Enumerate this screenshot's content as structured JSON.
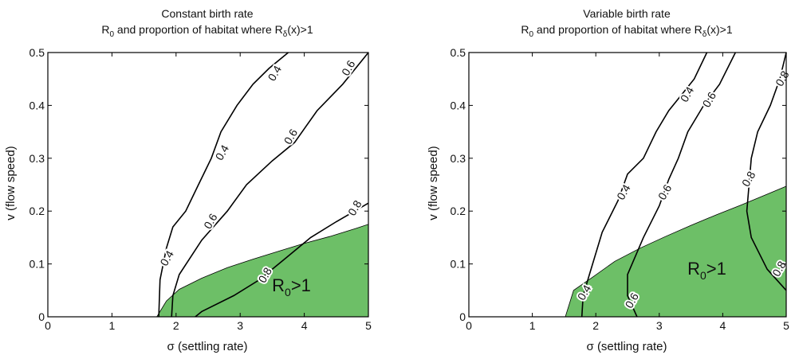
{
  "chart_data": [
    {
      "type": "contour",
      "title": "Constant birth rate",
      "subtitle_parts": {
        "pre": "R",
        "sub1": "0",
        "mid": " and proportion of habitat where R",
        "sub2": "δ",
        "post": "(x)>1"
      },
      "xlabel": "σ (settling rate)",
      "ylabel": "v (flow speed)",
      "xlim": [
        0,
        5
      ],
      "ylim": [
        0,
        0.5
      ],
      "xticks": [
        "0",
        "1",
        "2",
        "3",
        "4",
        "5"
      ],
      "yticks": [
        "0",
        "0.1",
        "0.2",
        "0.3",
        "0.4",
        "0.5"
      ],
      "fill_color": "#6dbf67",
      "region_label": {
        "main": "R",
        "sub": "0",
        "post": ">1",
        "x": 3.8,
        "y": 0.048
      },
      "region": [
        [
          1.7,
          0
        ],
        [
          1.85,
          0.03
        ],
        [
          2.05,
          0.052
        ],
        [
          2.4,
          0.073
        ],
        [
          2.8,
          0.093
        ],
        [
          3.2,
          0.109
        ],
        [
          3.6,
          0.124
        ],
        [
          4.0,
          0.139
        ],
        [
          4.4,
          0.152
        ],
        [
          4.8,
          0.167
        ],
        [
          5.0,
          0.175
        ],
        [
          5.0,
          0
        ]
      ],
      "contours": [
        {
          "level": "0.4",
          "points": [
            [
              1.73,
              0
            ],
            [
              1.75,
              0.07
            ],
            [
              1.85,
              0.13
            ],
            [
              1.95,
              0.17
            ],
            [
              2.15,
              0.2
            ],
            [
              2.35,
              0.25
            ],
            [
              2.55,
              0.3
            ],
            [
              2.7,
              0.35
            ],
            [
              2.95,
              0.4
            ],
            [
              3.2,
              0.44
            ],
            [
              3.45,
              0.47
            ],
            [
              3.75,
              0.5
            ]
          ],
          "labels": [
            {
              "text": "0.4",
              "x": 1.87,
              "y": 0.11
            },
            {
              "text": "0.4",
              "x": 2.73,
              "y": 0.31
            },
            {
              "text": "0.4",
              "x": 3.55,
              "y": 0.46
            }
          ]
        },
        {
          "level": "0.6",
          "points": [
            [
              1.93,
              0
            ],
            [
              1.95,
              0.04
            ],
            [
              2.05,
              0.08
            ],
            [
              2.4,
              0.145
            ],
            [
              2.8,
              0.2
            ],
            [
              3.1,
              0.25
            ],
            [
              3.5,
              0.295
            ],
            [
              3.85,
              0.33
            ],
            [
              4.2,
              0.39
            ],
            [
              4.6,
              0.44
            ],
            [
              5.0,
              0.5
            ]
          ],
          "labels": [
            {
              "text": "0.6",
              "x": 2.55,
              "y": 0.18
            },
            {
              "text": "0.6",
              "x": 3.8,
              "y": 0.34
            },
            {
              "text": "0.6",
              "x": 4.7,
              "y": 0.47
            }
          ]
        },
        {
          "level": "0.8",
          "points": [
            [
              2.3,
              0
            ],
            [
              2.4,
              0.01
            ],
            [
              2.9,
              0.04
            ],
            [
              3.3,
              0.07
            ],
            [
              3.7,
              0.11
            ],
            [
              4.1,
              0.15
            ],
            [
              4.5,
              0.18
            ],
            [
              5.0,
              0.215
            ]
          ],
          "labels": [
            {
              "text": "0.8",
              "x": 3.4,
              "y": 0.078
            },
            {
              "text": "0.8",
              "x": 4.8,
              "y": 0.205
            }
          ]
        }
      ]
    },
    {
      "type": "contour",
      "title": "Variable birth rate",
      "subtitle_parts": {
        "pre": "R",
        "sub1": "0",
        "mid": " and proportion of habitat where R",
        "sub2": "δ",
        "post": "(x)>1"
      },
      "xlabel": "σ (settling rate)",
      "ylabel": "v (flow speed)",
      "xlim": [
        0,
        5
      ],
      "ylim": [
        0,
        0.5
      ],
      "xticks": [
        "0",
        "1",
        "2",
        "3",
        "4",
        "5"
      ],
      "yticks": [
        "0",
        "0.1",
        "0.2",
        "0.3",
        "0.4",
        "0.5"
      ],
      "fill_color": "#6dbf67",
      "region_label": {
        "main": "R",
        "sub": "0",
        "post": ">1",
        "x": 3.75,
        "y": 0.08
      },
      "region": [
        [
          1.52,
          0
        ],
        [
          1.65,
          0.05
        ],
        [
          1.95,
          0.075
        ],
        [
          2.3,
          0.105
        ],
        [
          2.7,
          0.13
        ],
        [
          3.1,
          0.152
        ],
        [
          3.5,
          0.173
        ],
        [
          3.9,
          0.193
        ],
        [
          4.3,
          0.212
        ],
        [
          4.7,
          0.232
        ],
        [
          5.0,
          0.247
        ],
        [
          5.0,
          0
        ]
      ],
      "contours": [
        {
          "level": "0.4",
          "points": [
            [
              1.78,
              0
            ],
            [
              1.8,
              0.04
            ],
            [
              1.9,
              0.08
            ],
            [
              2.1,
              0.16
            ],
            [
              2.35,
              0.22
            ],
            [
              2.5,
              0.27
            ],
            [
              2.75,
              0.3
            ],
            [
              2.95,
              0.35
            ],
            [
              3.15,
              0.39
            ],
            [
              3.35,
              0.42
            ],
            [
              3.55,
              0.45
            ],
            [
              3.75,
              0.5
            ]
          ],
          "labels": [
            {
              "text": "0.4",
              "x": 1.83,
              "y": 0.045
            },
            {
              "text": "0.4",
              "x": 2.45,
              "y": 0.235
            },
            {
              "text": "0.4",
              "x": 3.45,
              "y": 0.42
            }
          ]
        },
        {
          "level": "0.6",
          "points": [
            [
              2.65,
              0
            ],
            [
              2.5,
              0.04
            ],
            [
              2.5,
              0.08
            ],
            [
              2.75,
              0.15
            ],
            [
              3.0,
              0.21
            ],
            [
              3.15,
              0.26
            ],
            [
              3.3,
              0.3
            ],
            [
              3.45,
              0.35
            ],
            [
              3.7,
              0.4
            ],
            [
              3.95,
              0.44
            ],
            [
              4.2,
              0.5
            ]
          ],
          "labels": [
            {
              "text": "0.6",
              "x": 2.58,
              "y": 0.03
            },
            {
              "text": "0.6",
              "x": 3.1,
              "y": 0.235
            },
            {
              "text": "0.6",
              "x": 3.8,
              "y": 0.41
            }
          ]
        },
        {
          "level": "0.8",
          "points": [
            [
              5.0,
              0.05
            ],
            [
              4.7,
              0.09
            ],
            [
              4.45,
              0.15
            ],
            [
              4.38,
              0.2
            ],
            [
              4.45,
              0.3
            ],
            [
              4.55,
              0.35
            ],
            [
              4.75,
              0.4
            ],
            [
              4.9,
              0.45
            ],
            [
              5.0,
              0.5
            ]
          ],
          "labels": [
            {
              "text": "0.8",
              "x": 4.9,
              "y": 0.09
            },
            {
              "text": "0.8",
              "x": 4.42,
              "y": 0.26
            },
            {
              "text": "0.8",
              "x": 4.95,
              "y": 0.45
            }
          ]
        }
      ]
    }
  ]
}
